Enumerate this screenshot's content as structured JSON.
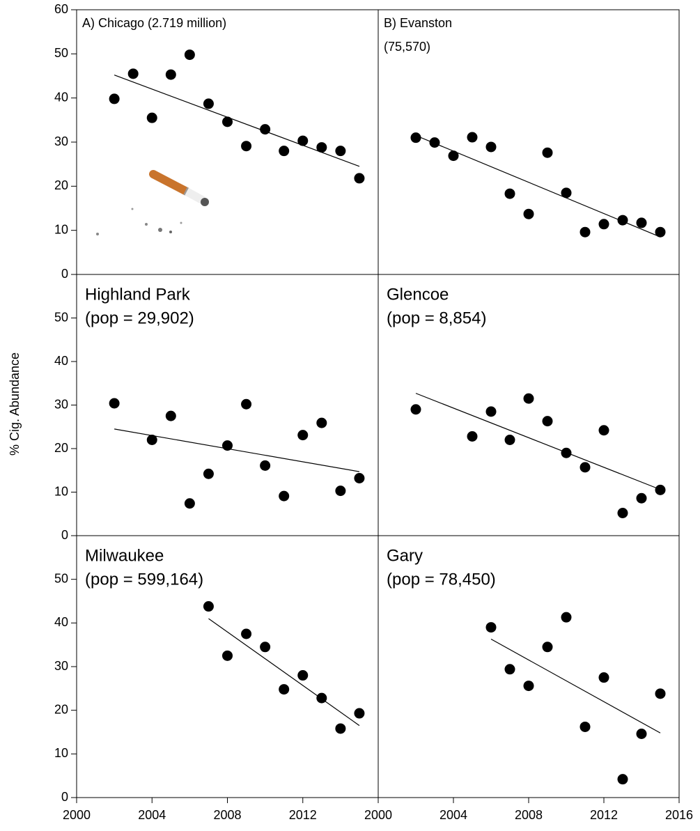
{
  "y_label": "% Cig. Abundance",
  "chart_data": [
    {
      "type": "scatter",
      "title": [
        "A) Chicago (2.719 million)"
      ],
      "color": "#000000",
      "x": [
        2002,
        2003,
        2004,
        2005,
        2006,
        2007,
        2008,
        2009,
        2010,
        2011,
        2012,
        2013,
        2014,
        2015
      ],
      "values": [
        39.8,
        45.5,
        35.5,
        45.3,
        49.8,
        38.7,
        34.6,
        29.1,
        32.9,
        28,
        30.3,
        28.8,
        28,
        21.8
      ],
      "trend": {
        "x": [
          2002,
          2015
        ],
        "y": [
          45.2,
          24.5
        ]
      },
      "xlim": [
        2000,
        2016
      ],
      "ylim": [
        0,
        60
      ],
      "yticks": [
        0,
        10,
        20,
        30,
        40,
        50,
        60
      ]
    },
    {
      "type": "scatter",
      "title": [
        "B) Evanston",
        "(75,570)"
      ],
      "color": "#000000",
      "x": [
        2002,
        2003,
        2004,
        2005,
        2006,
        2007,
        2008,
        2009,
        2010,
        2011,
        2012,
        2013,
        2014,
        2015
      ],
      "values": [
        31,
        29.9,
        26.9,
        31.1,
        28.9,
        18.3,
        13.7,
        27.6,
        18.5,
        9.6,
        11.4,
        12.3,
        11.7,
        9.6
      ],
      "trend": {
        "x": [
          2002,
          2015
        ],
        "y": [
          31.5,
          8.5
        ]
      },
      "xlim": [
        2000,
        2016
      ],
      "ylim": [
        0,
        60
      ]
    },
    {
      "type": "scatter",
      "title": [
        "Highland Park",
        "(pop = 29,902)"
      ],
      "color": "#000000",
      "x": [
        2002,
        2004,
        2005,
        2006,
        2007,
        2008,
        2009,
        2010,
        2011,
        2012,
        2013,
        2014,
        2015
      ],
      "values": [
        30.4,
        22,
        27.5,
        7.4,
        14.2,
        20.7,
        30.2,
        16.1,
        9.1,
        23.1,
        25.9,
        10.3,
        13.2
      ],
      "trend": {
        "x": [
          2002,
          2015
        ],
        "y": [
          24.5,
          14.7
        ]
      },
      "xlim": [
        2000,
        2016
      ],
      "ylim": [
        0,
        60
      ],
      "yticks": [
        0,
        10,
        20,
        30,
        40,
        50
      ]
    },
    {
      "type": "scatter",
      "title": [
        "Glencoe",
        "(pop = 8,854)"
      ],
      "color": "#000000",
      "x": [
        2002,
        2005,
        2006,
        2007,
        2008,
        2009,
        2010,
        2011,
        2012,
        2013,
        2014,
        2015
      ],
      "values": [
        29,
        22.8,
        28.5,
        22,
        31.5,
        26.3,
        19,
        15.7,
        24.2,
        5.2,
        8.6,
        10.5
      ],
      "trend": {
        "x": [
          2002,
          2015
        ],
        "y": [
          32.7,
          10.6
        ]
      },
      "xlim": [
        2000,
        2016
      ],
      "ylim": [
        0,
        60
      ]
    },
    {
      "type": "scatter",
      "title": [
        "Milwaukee",
        "(pop = 599,164)"
      ],
      "color": "#000000",
      "x": [
        2007,
        2008,
        2009,
        2010,
        2011,
        2012,
        2013,
        2014,
        2015
      ],
      "values": [
        43.8,
        32.5,
        37.5,
        34.5,
        24.8,
        28,
        22.8,
        15.8,
        19.3
      ],
      "trend": {
        "x": [
          2007,
          2015
        ],
        "y": [
          41,
          16.5
        ]
      },
      "xlim": [
        2000,
        2016
      ],
      "ylim": [
        0,
        60
      ],
      "yticks": [
        0,
        10,
        20,
        30,
        40,
        50
      ],
      "xticks": [
        2000,
        2004,
        2008,
        2012
      ]
    },
    {
      "type": "scatter",
      "title": [
        "Gary",
        "(pop = 78,450)"
      ],
      "color": "#000000",
      "x": [
        2006,
        2007,
        2008,
        2009,
        2010,
        2011,
        2012,
        2013,
        2014,
        2015
      ],
      "values": [
        39,
        29.4,
        25.6,
        34.5,
        41.3,
        16.2,
        27.5,
        4.2,
        14.6,
        23.8
      ],
      "trend": {
        "x": [
          2006,
          2015
        ],
        "y": [
          36.3,
          14.8
        ]
      },
      "xlim": [
        2000,
        2016
      ],
      "ylim": [
        0,
        60
      ],
      "xticks": [
        2000,
        2004,
        2008,
        2012,
        2016
      ]
    }
  ]
}
